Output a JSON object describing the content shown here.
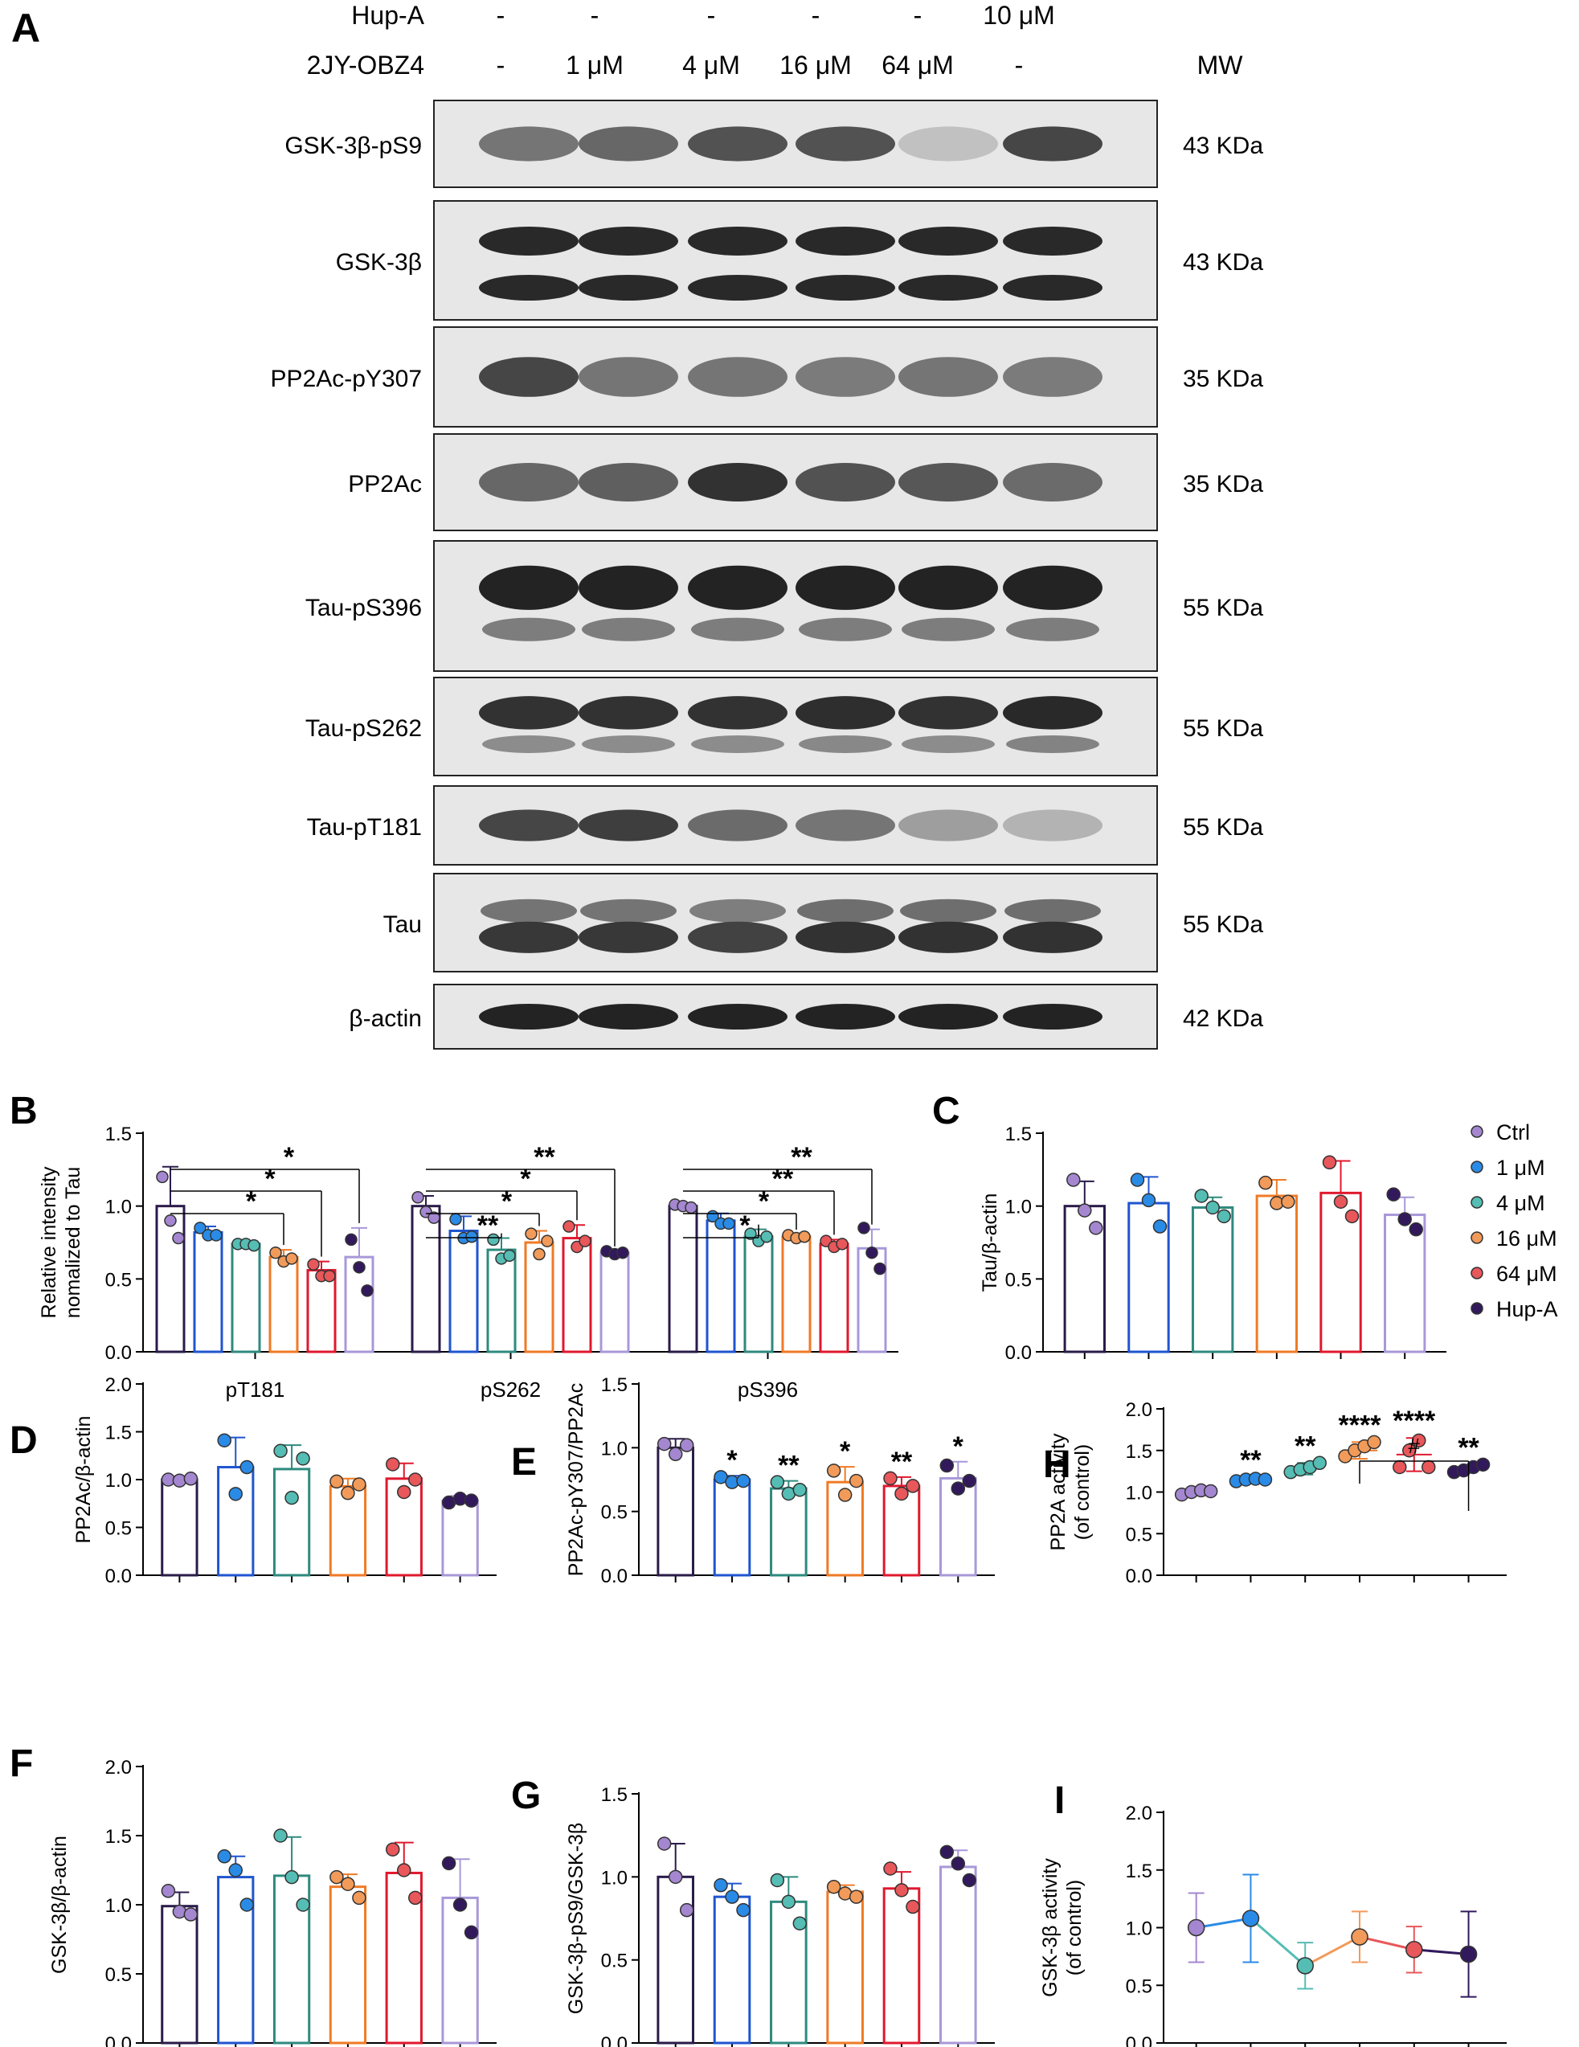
{
  "colors": {
    "Ctrl": "#A487D0",
    "1 μM": "#2A8BE6",
    "4 μM": "#55BDB4",
    "16 μM": "#F29A59",
    "64 μM": "#E8575A",
    "Hup-A": "#32195C"
  },
  "bar_edge_colors": [
    "#2A1B4A",
    "#1F55D0",
    "#2E8A7E",
    "#F07A25",
    "#E0182E",
    "#A898D8"
  ],
  "blot": {
    "panel_letter": "A",
    "row_hupa": {
      "label": "Hup-A",
      "values": [
        "-",
        "-",
        "-",
        "-",
        "-",
        "10 μM"
      ]
    },
    "row_drug": {
      "label": "2JY-OBZ4",
      "values": [
        "-",
        "1 μM",
        "4 μM",
        "16 μM",
        "64 μM",
        "-"
      ]
    },
    "mw_header": "MW",
    "strips": [
      {
        "label": "GSK-3β-pS9",
        "mw": "43 KDa",
        "lanes": [
          0.55,
          0.62,
          0.72,
          0.72,
          0.18,
          0.78
        ]
      },
      {
        "label": "GSK-3β",
        "mw": "43 KDa",
        "lanes": [
          0.92,
          0.92,
          0.92,
          0.92,
          0.92,
          0.92
        ]
      },
      {
        "label": "PP2Ac-pY307",
        "mw": "35 KDa",
        "lanes": [
          0.78,
          0.55,
          0.55,
          0.52,
          0.55,
          0.52
        ]
      },
      {
        "label": "PP2Ac",
        "mw": "35 KDa",
        "lanes": [
          0.62,
          0.66,
          0.88,
          0.72,
          0.7,
          0.6
        ]
      },
      {
        "label": "Tau-pS396",
        "mw": "55 KDa",
        "lanes": [
          0.95,
          0.95,
          0.95,
          0.95,
          0.95,
          0.95
        ]
      },
      {
        "label": "Tau-pS262",
        "mw": "55 KDa",
        "lanes": [
          0.88,
          0.88,
          0.88,
          0.9,
          0.88,
          0.92
        ]
      },
      {
        "label": "Tau-pT181",
        "mw": "55 KDa",
        "lanes": [
          0.78,
          0.82,
          0.6,
          0.55,
          0.35,
          0.25
        ]
      },
      {
        "label": "Tau",
        "mw": "55 KDa",
        "lanes": [
          0.85,
          0.85,
          0.8,
          0.88,
          0.88,
          0.88
        ]
      },
      {
        "label": "β-actin",
        "mw": "42 KDa",
        "lanes": [
          0.95,
          0.95,
          0.95,
          0.95,
          0.95,
          0.95
        ]
      }
    ]
  },
  "legend": {
    "entries": [
      "Ctrl",
      "1 μM",
      "4 μM",
      "16 μM",
      "64 μM",
      "Hup-A"
    ]
  },
  "chart_data": [
    {
      "panel": "B",
      "type": "bar",
      "ylabel_lines": [
        "Relative intensity",
        "nomalized to Tau"
      ],
      "ylim": [
        0,
        1.5
      ],
      "yticks": [
        "0.0",
        "0.5",
        "1.0",
        "1.5"
      ],
      "categories": [
        "pT181",
        "pS262",
        "pS396"
      ],
      "series": [
        {
          "name": "Ctrl",
          "values": [
            1.0,
            1.0,
            1.0
          ],
          "err": [
            0.27,
            0.07,
            0.015
          ],
          "points": [
            [
              1.2,
              0.9,
              0.78
            ],
            [
              1.06,
              0.96,
              0.92
            ],
            [
              1.01,
              1.0,
              0.99
            ]
          ]
        },
        {
          "name": "1 μM",
          "values": [
            0.82,
            0.83,
            0.9
          ],
          "err": [
            0.04,
            0.1,
            0.05
          ],
          "points": [
            [
              0.85,
              0.8,
              0.8
            ],
            [
              0.91,
              0.78,
              0.79
            ],
            [
              0.93,
              0.88,
              0.88
            ]
          ]
        },
        {
          "name": "4 μM",
          "values": [
            0.74,
            0.7,
            0.79
          ],
          "err": [
            0.01,
            0.08,
            0.05
          ],
          "points": [
            [
              0.74,
              0.74,
              0.73
            ],
            [
              0.77,
              0.64,
              0.66
            ],
            [
              0.81,
              0.76,
              0.79
            ]
          ]
        },
        {
          "name": "16 μM",
          "values": [
            0.65,
            0.75,
            0.79
          ],
          "err": [
            0.05,
            0.08,
            0.015
          ],
          "points": [
            [
              0.68,
              0.62,
              0.64
            ],
            [
              0.81,
              0.67,
              0.76
            ],
            [
              0.8,
              0.78,
              0.79
            ]
          ]
        },
        {
          "name": "64 μM",
          "values": [
            0.56,
            0.78,
            0.74
          ],
          "err": [
            0.06,
            0.09,
            0.03
          ],
          "points": [
            [
              0.6,
              0.52,
              0.52
            ],
            [
              0.86,
              0.72,
              0.76
            ],
            [
              0.76,
              0.72,
              0.74
            ]
          ]
        },
        {
          "name": "Hup-A",
          "values": [
            0.65,
            0.68,
            0.71
          ],
          "err": [
            0.2,
            0.01,
            0.13
          ],
          "points": [
            [
              0.77,
              0.58,
              0.42
            ],
            [
              0.69,
              0.67,
              0.68
            ],
            [
              0.85,
              0.68,
              0.57
            ]
          ]
        }
      ],
      "significance": [
        {
          "group": 0,
          "to": 3,
          "text": "*"
        },
        {
          "group": 0,
          "to": 4,
          "text": "*"
        },
        {
          "group": 0,
          "to": 5,
          "text": "*"
        },
        {
          "group": 1,
          "to": 2,
          "text": "**"
        },
        {
          "group": 1,
          "to": 3,
          "text": "*"
        },
        {
          "group": 1,
          "to": 4,
          "text": "*"
        },
        {
          "group": 1,
          "to": 5,
          "text": "**"
        },
        {
          "group": 2,
          "to": 2,
          "text": "*"
        },
        {
          "group": 2,
          "to": 3,
          "text": "*"
        },
        {
          "group": 2,
          "to": 4,
          "text": "**"
        },
        {
          "group": 2,
          "to": 5,
          "text": "**"
        }
      ]
    },
    {
      "panel": "C",
      "type": "bar",
      "ylabel_lines": [
        "Tau/β-actin"
      ],
      "ylim": [
        0,
        1.5
      ],
      "yticks": [
        "0.0",
        "0.5",
        "1.0",
        "1.5"
      ],
      "values": [
        1.0,
        1.02,
        0.99,
        1.07,
        1.09,
        0.94
      ],
      "err": [
        0.17,
        0.18,
        0.07,
        0.11,
        0.22,
        0.12
      ],
      "points": [
        [
          1.18,
          0.97,
          0.85
        ],
        [
          1.18,
          1.04,
          0.86
        ],
        [
          1.07,
          0.99,
          0.93
        ],
        [
          1.16,
          1.02,
          1.03
        ],
        [
          1.3,
          1.03,
          0.93
        ],
        [
          1.08,
          0.91,
          0.84
        ]
      ]
    },
    {
      "panel": "D",
      "type": "bar",
      "ylabel_lines": [
        "PP2Ac/β-actin"
      ],
      "ylim": [
        0,
        2.0
      ],
      "yticks": [
        "0.0",
        "0.5",
        "1.0",
        "1.5",
        "2.0"
      ],
      "values": [
        1.0,
        1.13,
        1.11,
        0.93,
        1.01,
        0.78
      ],
      "err": [
        0.02,
        0.31,
        0.25,
        0.08,
        0.16,
        0.05
      ],
      "points": [
        [
          1.0,
          0.99,
          1.01
        ],
        [
          1.41,
          0.85,
          1.13
        ],
        [
          1.3,
          0.81,
          1.22
        ],
        [
          0.98,
          0.86,
          0.95
        ],
        [
          1.16,
          0.87,
          1.0
        ],
        [
          0.76,
          0.8,
          0.78
        ]
      ]
    },
    {
      "panel": "E",
      "type": "bar",
      "ylabel_lines": [
        "PP2Ac-pY307/PP2Ac"
      ],
      "ylim": [
        0,
        1.5
      ],
      "yticks": [
        "0.0",
        "0.5",
        "1.0",
        "1.5"
      ],
      "values": [
        1.0,
        0.75,
        0.68,
        0.73,
        0.7,
        0.76
      ],
      "err": [
        0.07,
        0.03,
        0.06,
        0.12,
        0.07,
        0.13
      ],
      "points": [
        [
          1.03,
          0.95,
          1.02
        ],
        [
          0.77,
          0.73,
          0.74
        ],
        [
          0.73,
          0.64,
          0.67
        ],
        [
          0.82,
          0.63,
          0.74
        ],
        [
          0.76,
          0.64,
          0.7
        ],
        [
          0.86,
          0.68,
          0.74
        ]
      ],
      "stars": [
        "",
        "*",
        "**",
        "*",
        "**",
        "*"
      ]
    },
    {
      "panel": "H",
      "type": "scatter",
      "ylabel_lines": [
        "PP2A activity",
        "(of control)"
      ],
      "ylim": [
        0,
        2.0
      ],
      "yticks": [
        "0.0",
        "0.5",
        "1.0",
        "1.5",
        "2.0"
      ],
      "values": [
        1.0,
        1.15,
        1.28,
        1.5,
        1.45,
        1.28
      ],
      "err": [
        0.04,
        0.03,
        0.07,
        0.1,
        0.2,
        0.05
      ],
      "points": [
        [
          0.97,
          1.0,
          1.02,
          1.01
        ],
        [
          1.13,
          1.15,
          1.16,
          1.15
        ],
        [
          1.24,
          1.27,
          1.3,
          1.35
        ],
        [
          1.43,
          1.5,
          1.55,
          1.6
        ],
        [
          1.3,
          1.5,
          1.62,
          1.3
        ],
        [
          1.24,
          1.26,
          1.3,
          1.33
        ]
      ],
      "stars": [
        "",
        "**",
        "**",
        "****",
        "****",
        "**"
      ],
      "bracket": {
        "from": 3,
        "to": 5,
        "text": "#"
      }
    },
    {
      "panel": "F",
      "type": "bar",
      "ylabel_lines": [
        "GSK-3β/β-actin"
      ],
      "ylim": [
        0,
        2.0
      ],
      "yticks": [
        "0.0",
        "0.5",
        "1.0",
        "1.5",
        "2.0"
      ],
      "values": [
        0.99,
        1.2,
        1.21,
        1.13,
        1.23,
        1.05
      ],
      "err": [
        0.1,
        0.15,
        0.28,
        0.09,
        0.22,
        0.28
      ],
      "points": [
        [
          1.1,
          0.95,
          0.93
        ],
        [
          1.35,
          1.25,
          1.0
        ],
        [
          1.5,
          1.2,
          1.0
        ],
        [
          1.2,
          1.15,
          1.05
        ],
        [
          1.4,
          1.25,
          1.05
        ],
        [
          1.3,
          1.0,
          0.8
        ]
      ]
    },
    {
      "panel": "G",
      "type": "bar",
      "ylabel_lines": [
        "GSK-3β-pS9/GSK-3β"
      ],
      "ylim": [
        0,
        1.5
      ],
      "yticks": [
        "0.0",
        "0.5",
        "1.0",
        "1.5"
      ],
      "values": [
        1.0,
        0.88,
        0.85,
        0.91,
        0.93,
        1.06
      ],
      "err": [
        0.2,
        0.08,
        0.15,
        0.04,
        0.1,
        0.1
      ],
      "points": [
        [
          1.2,
          1.0,
          0.8
        ],
        [
          0.95,
          0.88,
          0.8
        ],
        [
          0.98,
          0.85,
          0.72
        ],
        [
          0.94,
          0.9,
          0.88
        ],
        [
          1.05,
          0.92,
          0.82
        ],
        [
          1.15,
          1.08,
          0.98
        ]
      ]
    },
    {
      "panel": "I",
      "type": "line",
      "ylabel_lines": [
        "GSK-3β activity",
        "(of control)"
      ],
      "ylim": [
        0,
        2.0
      ],
      "yticks": [
        "0.0",
        "0.5",
        "1.0",
        "1.5",
        "2.0"
      ],
      "values": [
        1.0,
        1.08,
        0.67,
        0.92,
        0.81,
        0.77
      ],
      "err": [
        0.3,
        0.38,
        0.2,
        0.22,
        0.2,
        0.37
      ]
    }
  ]
}
